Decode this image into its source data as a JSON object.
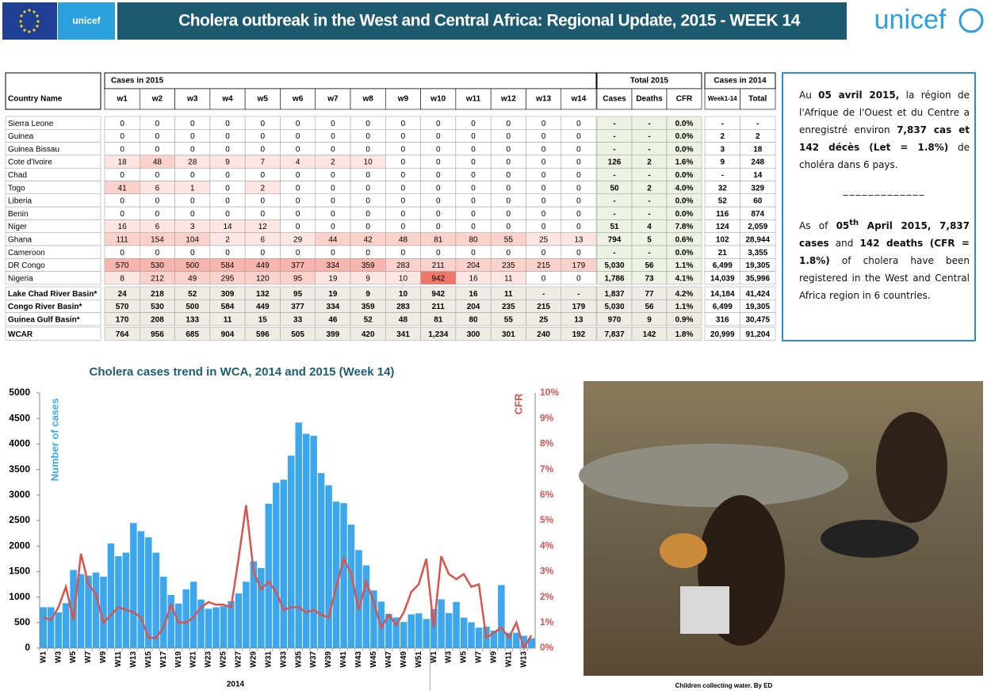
{
  "header": {
    "title": "Cholera outbreak in the West and Central Africa: Regional Update, 2015 - WEEK 14",
    "logo_small": "unicef",
    "logo_large": "unicef"
  },
  "table": {
    "group_headers": [
      "Cases in 2015",
      "Total 2015",
      "Cases in 2014"
    ],
    "columns": [
      "Country Name",
      "w1",
      "w2",
      "w3",
      "w4",
      "w5",
      "w6",
      "w7",
      "w8",
      "w9",
      "w10",
      "w11",
      "w12",
      "w13",
      "w14",
      "Cases",
      "Deaths",
      "CFR",
      "Week1-14",
      "Total"
    ],
    "rows": [
      [
        "Sierra Leone",
        "0",
        "0",
        "0",
        "0",
        "0",
        "0",
        "0",
        "0",
        "0",
        "0",
        "0",
        "0",
        "0",
        "0",
        "-",
        "-",
        "0.0%",
        "-",
        "-"
      ],
      [
        "Guinea",
        "0",
        "0",
        "0",
        "0",
        "0",
        "0",
        "0",
        "0",
        "0",
        "0",
        "0",
        "0",
        "0",
        "0",
        "-",
        "-",
        "0.0%",
        "2",
        "2"
      ],
      [
        "Guinea Bissau",
        "0",
        "0",
        "0",
        "0",
        "0",
        "0",
        "0",
        "0",
        "0",
        "0",
        "0",
        "0",
        "0",
        "0",
        "-",
        "-",
        "0.0%",
        "3",
        "18"
      ],
      [
        "Cote d'Ivoire",
        "18",
        "48",
        "28",
        "9",
        "7",
        "4",
        "2",
        "10",
        "0",
        "0",
        "0",
        "0",
        "0",
        "0",
        "126",
        "2",
        "1.6%",
        "9",
        "248"
      ],
      [
        "Chad",
        "0",
        "0",
        "0",
        "0",
        "0",
        "0",
        "0",
        "0",
        "0",
        "0",
        "0",
        "0",
        "0",
        "0",
        "-",
        "-",
        "0.0%",
        "-",
        "14"
      ],
      [
        "Togo",
        "41",
        "6",
        "1",
        "0",
        "2",
        "0",
        "0",
        "0",
        "0",
        "0",
        "0",
        "0",
        "0",
        "0",
        "50",
        "2",
        "4.0%",
        "32",
        "329"
      ],
      [
        "Liberia",
        "0",
        "0",
        "0",
        "0",
        "0",
        "0",
        "0",
        "0",
        "0",
        "0",
        "0",
        "0",
        "0",
        "0",
        "-",
        "-",
        "0.0%",
        "52",
        "60"
      ],
      [
        "Benin",
        "0",
        "0",
        "0",
        "0",
        "0",
        "0",
        "0",
        "0",
        "0",
        "0",
        "0",
        "0",
        "0",
        "0",
        "-",
        "-",
        "0.0%",
        "116",
        "874"
      ],
      [
        "Niger",
        "16",
        "6",
        "3",
        "14",
        "12",
        "0",
        "0",
        "0",
        "0",
        "0",
        "0",
        "0",
        "0",
        "0",
        "51",
        "4",
        "7.8%",
        "124",
        "2,059"
      ],
      [
        "Ghana",
        "111",
        "154",
        "104",
        "2",
        "6",
        "29",
        "44",
        "42",
        "48",
        "81",
        "80",
        "55",
        "25",
        "13",
        "794",
        "5",
        "0.6%",
        "102",
        "28,944"
      ],
      [
        "Cameroon",
        "0",
        "0",
        "0",
        "0",
        "0",
        "0",
        "0",
        "0",
        "0",
        "0",
        "0",
        "0",
        "0",
        "0",
        "-",
        "-",
        "0.0%",
        "21",
        "3,355"
      ],
      [
        "DR Congo",
        "570",
        "530",
        "500",
        "584",
        "449",
        "377",
        "334",
        "359",
        "283",
        "211",
        "204",
        "235",
        "215",
        "179",
        "5,030",
        "56",
        "1.1%",
        "6,499",
        "19,305"
      ],
      [
        "Nigeria",
        "8",
        "212",
        "49",
        "295",
        "120",
        "95",
        "19",
        "9",
        "10",
        "942",
        "16",
        "11",
        "0",
        "0",
        "1,786",
        "73",
        "4.1%",
        "14,039",
        "35,996"
      ],
      [
        "Lake Chad River Basin*",
        "24",
        "218",
        "52",
        "309",
        "132",
        "95",
        "19",
        "9",
        "10",
        "942",
        "16",
        "11",
        "-",
        "-",
        "1,837",
        "77",
        "4.2%",
        "14,184",
        "41,424"
      ],
      [
        "Congo River Basin*",
        "570",
        "530",
        "500",
        "584",
        "449",
        "377",
        "334",
        "359",
        "283",
        "211",
        "204",
        "235",
        "215",
        "179",
        "5,030",
        "56",
        "1.1%",
        "6,499",
        "19,305"
      ],
      [
        "Guinea Gulf Basin*",
        "170",
        "208",
        "133",
        "11",
        "15",
        "33",
        "46",
        "52",
        "48",
        "81",
        "80",
        "55",
        "25",
        "13",
        "970",
        "9",
        "0.9%",
        "316",
        "30,475"
      ],
      [
        "WCAR",
        "764",
        "956",
        "685",
        "904",
        "596",
        "505",
        "399",
        "420",
        "341",
        "1,234",
        "300",
        "301",
        "240",
        "192",
        "7,837",
        "142",
        "1.8%",
        "20,999",
        "91,204"
      ]
    ]
  },
  "note": {
    "french": [
      {
        "text": "Au ",
        "bold": false
      },
      {
        "text": "05 avril 2015,",
        "bold": true
      },
      {
        "text": "  la région de l'Afrique de l'Ouest et du Centre a enregistré environ  ",
        "bold": false
      },
      {
        "text": "7,837 cas et 142 décès (Let = 1.8%)",
        "bold": true
      },
      {
        "text": " de choléra dans 6 pays.",
        "bold": false
      }
    ],
    "separator": "_____________",
    "english": [
      {
        "text": "As of ",
        "bold": false
      },
      {
        "text": "05",
        "bold": true
      },
      {
        "text": "th",
        "bold": true,
        "sup": true
      },
      {
        "text": " April 2015,  7,837 cases",
        "bold": true
      },
      {
        "text": " and ",
        "bold": false
      },
      {
        "text": "142 deaths (CFR = 1.8%)",
        "bold": true
      },
      {
        "text": " of cholera have been registered in the West and Central Africa region in 6 countries.",
        "bold": false
      }
    ]
  },
  "chart_data": {
    "type": "bar",
    "title": "Cholera cases trend in WCA, 2014 and 2015 (Week 14)",
    "ylabel": "Number of cases",
    "y2label": "CFR",
    "year_label": "2014",
    "categories": [
      "W1",
      null,
      "W3",
      null,
      "W5",
      null,
      "W7",
      null,
      "W9",
      null,
      "W11",
      null,
      "W13",
      null,
      "W15",
      null,
      "W17",
      null,
      "W19",
      null,
      "W21",
      null,
      "W23",
      null,
      "W25",
      null,
      "W27",
      null,
      "W29",
      null,
      "W31",
      null,
      "W33",
      null,
      "W35",
      null,
      "W37",
      null,
      "W39",
      null,
      "W41",
      null,
      "W43",
      null,
      "W45",
      null,
      "W47",
      null,
      "W49",
      null,
      "W51",
      null,
      "W1",
      null,
      "W3",
      null,
      "W5",
      null,
      "W7",
      null,
      "W9",
      null,
      "W11",
      null,
      "W13",
      null
    ],
    "ylim": [
      0,
      5000
    ],
    "yticks": [
      0,
      500,
      1000,
      1500,
      2000,
      2500,
      3000,
      3500,
      4000,
      4500,
      5000
    ],
    "y2lim": [
      0,
      10
    ],
    "y2ticks": [
      {
        "value": 0,
        "label": "0%"
      },
      {
        "value": 1,
        "label": "1%"
      },
      {
        "value": 2,
        "label": "2%"
      },
      {
        "value": 3,
        "label": "3%"
      },
      {
        "value": 4,
        "label": "4%"
      },
      {
        "value": 5,
        "label": "5%"
      },
      {
        "value": 6,
        "label": "6%"
      },
      {
        "value": 7,
        "label": "7%"
      },
      {
        "value": 8,
        "label": "8%"
      },
      {
        "value": 9,
        "label": "9%"
      },
      {
        "value": 10,
        "label": "10%"
      }
    ],
    "series": [
      {
        "type": "bar",
        "color": "#3da7ee",
        "values": [
          800,
          800,
          700,
          880,
          1530,
          1450,
          1420,
          1480,
          1400,
          2050,
          1800,
          1870,
          2450,
          2290,
          2170,
          1870,
          1400,
          1040,
          870,
          1150,
          1300,
          950,
          770,
          800,
          820,
          920,
          1070,
          1300,
          1700,
          1570,
          2830,
          3240,
          3300,
          3770,
          4420,
          4200,
          4160,
          3430,
          3190,
          2870,
          2840,
          2420,
          1920,
          1620,
          1130,
          910,
          670,
          600,
          510,
          660,
          680,
          570,
          764,
          956,
          685,
          904,
          596,
          505,
          399,
          420,
          341,
          1234,
          300,
          301,
          240,
          192
        ]
      },
      {
        "type": "line",
        "axis": "y2",
        "color": "#d9534f",
        "values": [
          1.2,
          1.1,
          1.6,
          2.4,
          1.1,
          3.7,
          2.5,
          2.1,
          1.0,
          1.3,
          1.6,
          1.5,
          1.4,
          1.2,
          0.4,
          0.4,
          0.8,
          1.7,
          1.0,
          1.0,
          1.2,
          1.6,
          1.8,
          1.7,
          1.7,
          1.6,
          3.5,
          5.6,
          3.0,
          2.3,
          2.6,
          2.2,
          1.5,
          1.6,
          1.6,
          1.4,
          1.5,
          1.3,
          1.2,
          2.4,
          3.5,
          2.9,
          1.5,
          2.6,
          1.8,
          0.8,
          1.3,
          0.9,
          1.4,
          2.2,
          2.5,
          3.5,
          0.8,
          3.6,
          2.9,
          2.7,
          2.9,
          2.4,
          2.5,
          0.4,
          0.6,
          0.8,
          0.4,
          1.0,
          0.0,
          0.5
        ]
      }
    ]
  },
  "photo": {
    "caption": "Children collecting water. By ED"
  }
}
